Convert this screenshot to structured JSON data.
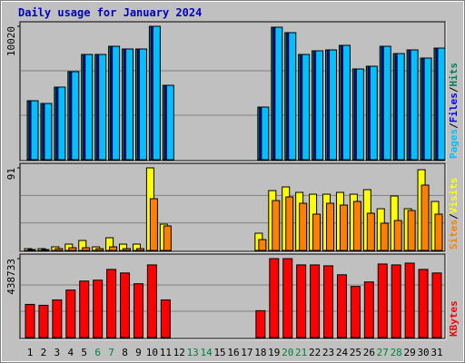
{
  "chart_data": [
    {
      "type": "bar",
      "title": "Daily usage for January 2024",
      "categories": [
        "1",
        "2",
        "3",
        "4",
        "5",
        "6",
        "7",
        "8",
        "9",
        "10",
        "11",
        "12",
        "13",
        "14",
        "15",
        "16",
        "17",
        "18",
        "19",
        "20",
        "21",
        "22",
        "23",
        "24",
        "25",
        "26",
        "27",
        "28",
        "29",
        "30",
        "31"
      ],
      "label_colors": [
        "#000000",
        "#000000",
        "#000000",
        "#000000",
        "#000000",
        "#008040",
        "#008040",
        "#000000",
        "#000000",
        "#000000",
        "#000000",
        "#000000",
        "#008040",
        "#008040",
        "#000000",
        "#000000",
        "#000000",
        "#000000",
        "#000000",
        "#008040",
        "#008040",
        "#000000",
        "#000000",
        "#000000",
        "#000000",
        "#000000",
        "#008040",
        "#008040",
        "#000000",
        "#000000",
        "#000000"
      ],
      "ylim": [
        0,
        10020
      ],
      "yticks": [
        10020
      ],
      "series": [
        {
          "name": "Hits",
          "color": "#00805c",
          "values": [
            4431,
            4226,
            5453,
            6612,
            7907,
            7907,
            8520,
            8316,
            8316,
            10020,
            5589,
            0,
            0,
            0,
            0,
            0,
            0,
            3954,
            9952,
            9543,
            7907,
            8180,
            8248,
            8589,
            6816,
            7021,
            8520,
            7975,
            8248,
            7634,
            8384
          ]
        },
        {
          "name": "Files",
          "color": "#0000ff",
          "values": [
            4431,
            4226,
            5453,
            6612,
            7907,
            7907,
            8520,
            8316,
            8316,
            10020,
            5589,
            0,
            0,
            0,
            0,
            0,
            0,
            3954,
            9952,
            9543,
            7907,
            8180,
            8248,
            8589,
            6816,
            7021,
            8520,
            7975,
            8248,
            7634,
            8384
          ]
        },
        {
          "name": "Pages",
          "color": "#00c0ff",
          "values": [
            4431,
            4226,
            5453,
            6612,
            7907,
            7907,
            8520,
            8316,
            8316,
            10020,
            5589,
            0,
            0,
            0,
            0,
            0,
            0,
            3954,
            9952,
            9543,
            7907,
            8180,
            8248,
            8589,
            6816,
            7021,
            8520,
            7975,
            8248,
            7634,
            8384
          ]
        }
      ]
    },
    {
      "type": "bar",
      "ylim": [
        0,
        91
      ],
      "yticks": [
        91
      ],
      "series": [
        {
          "name": "Visits",
          "color": "#ffff00",
          "values": [
            2,
            2,
            4,
            7,
            11,
            4,
            14,
            7,
            7,
            91,
            29,
            0,
            0,
            0,
            0,
            0,
            0,
            19,
            66,
            70,
            64,
            62,
            62,
            64,
            62,
            67,
            46,
            60,
            46,
            89,
            54
          ]
        },
        {
          "name": "Sites",
          "color": "#ff8000",
          "values": [
            1,
            1,
            2,
            3,
            3,
            2,
            4,
            2,
            2,
            57,
            27,
            0,
            0,
            0,
            0,
            0,
            0,
            12,
            55,
            59,
            52,
            40,
            52,
            50,
            54,
            41,
            30,
            33,
            44,
            72,
            40
          ]
        }
      ]
    },
    {
      "type": "bar",
      "ylim": [
        0,
        438733
      ],
      "yticks": [
        438733
      ],
      "series": [
        {
          "name": "KBytes",
          "color": "#ff0000",
          "values": [
            184468,
            179482,
            209395,
            264237,
            314093,
            319078,
            378906,
            358963,
            299137,
            403834,
            209395,
            0,
            0,
            0,
            0,
            0,
            0,
            149568,
            438733,
            438733,
            403834,
            403834,
            398848,
            348992,
            284180,
            309109,
            408819,
            403834,
            413805,
            378906,
            358963
          ]
        }
      ]
    }
  ]
}
